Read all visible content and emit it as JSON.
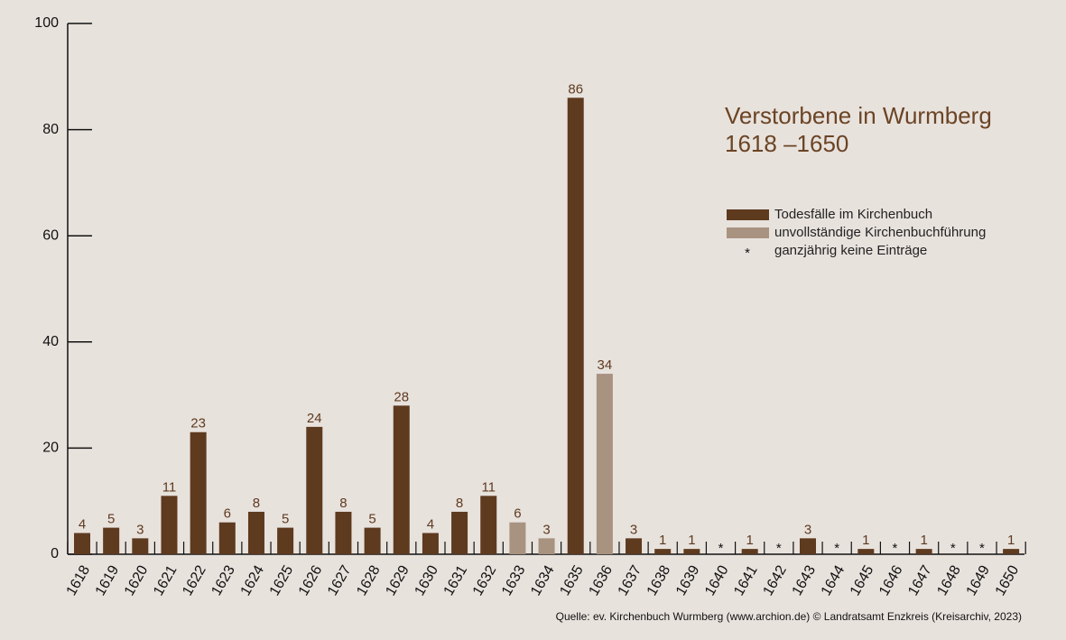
{
  "chart_data": {
    "type": "bar",
    "title": "Verstorbene in Wurmberg",
    "subtitle": "1618 –1650",
    "categories": [
      "1618",
      "1619",
      "1620",
      "1621",
      "1622",
      "1623",
      "1624",
      "1625",
      "1626",
      "1627",
      "1628",
      "1629",
      "1630",
      "1631",
      "1632",
      "1633",
      "1634",
      "1635",
      "1636",
      "1637",
      "1638",
      "1639",
      "1640",
      "1641",
      "1642",
      "1643",
      "1644",
      "1645",
      "1646",
      "1647",
      "1648",
      "1649",
      "1650"
    ],
    "series": [
      {
        "name": "Todesfälle im Kirchenbuch",
        "color": "#5e3a1f",
        "values": [
          4,
          5,
          3,
          11,
          23,
          6,
          8,
          5,
          24,
          8,
          5,
          28,
          4,
          8,
          11,
          null,
          null,
          86,
          null,
          3,
          1,
          1,
          null,
          1,
          null,
          3,
          null,
          1,
          null,
          1,
          null,
          null,
          1
        ]
      },
      {
        "name": "unvollständige Kirchenbuchführung",
        "color": "#a89280",
        "values": [
          null,
          null,
          null,
          null,
          null,
          null,
          null,
          null,
          null,
          null,
          null,
          null,
          null,
          null,
          null,
          6,
          3,
          null,
          34,
          null,
          null,
          null,
          null,
          null,
          null,
          null,
          null,
          null,
          null,
          null,
          null,
          null,
          null
        ]
      },
      {
        "name": "ganzjährig keine Einträge",
        "marker": "*",
        "values": [
          null,
          null,
          null,
          null,
          null,
          null,
          null,
          null,
          null,
          null,
          null,
          null,
          null,
          null,
          null,
          null,
          null,
          null,
          null,
          null,
          null,
          null,
          null,
          null,
          null,
          null,
          null,
          null,
          null,
          null,
          null,
          null,
          null
        ],
        "value_labels": [
          null,
          null,
          null,
          null,
          null,
          null,
          null,
          null,
          null,
          null,
          null,
          null,
          null,
          null,
          null,
          null,
          null,
          null,
          null,
          null,
          null,
          null,
          "*",
          null,
          "*",
          null,
          "*",
          null,
          "*",
          null,
          "*",
          "*",
          null
        ]
      }
    ],
    "ylim": [
      0,
      100
    ],
    "yticks": [
      0,
      20,
      40,
      60,
      80,
      100
    ],
    "source": "Quelle: ev. Kirchenbuch Wurmberg (www.archion.de)  © Landratsamt Enzkreis (Kreisarchiv, 2023)"
  }
}
